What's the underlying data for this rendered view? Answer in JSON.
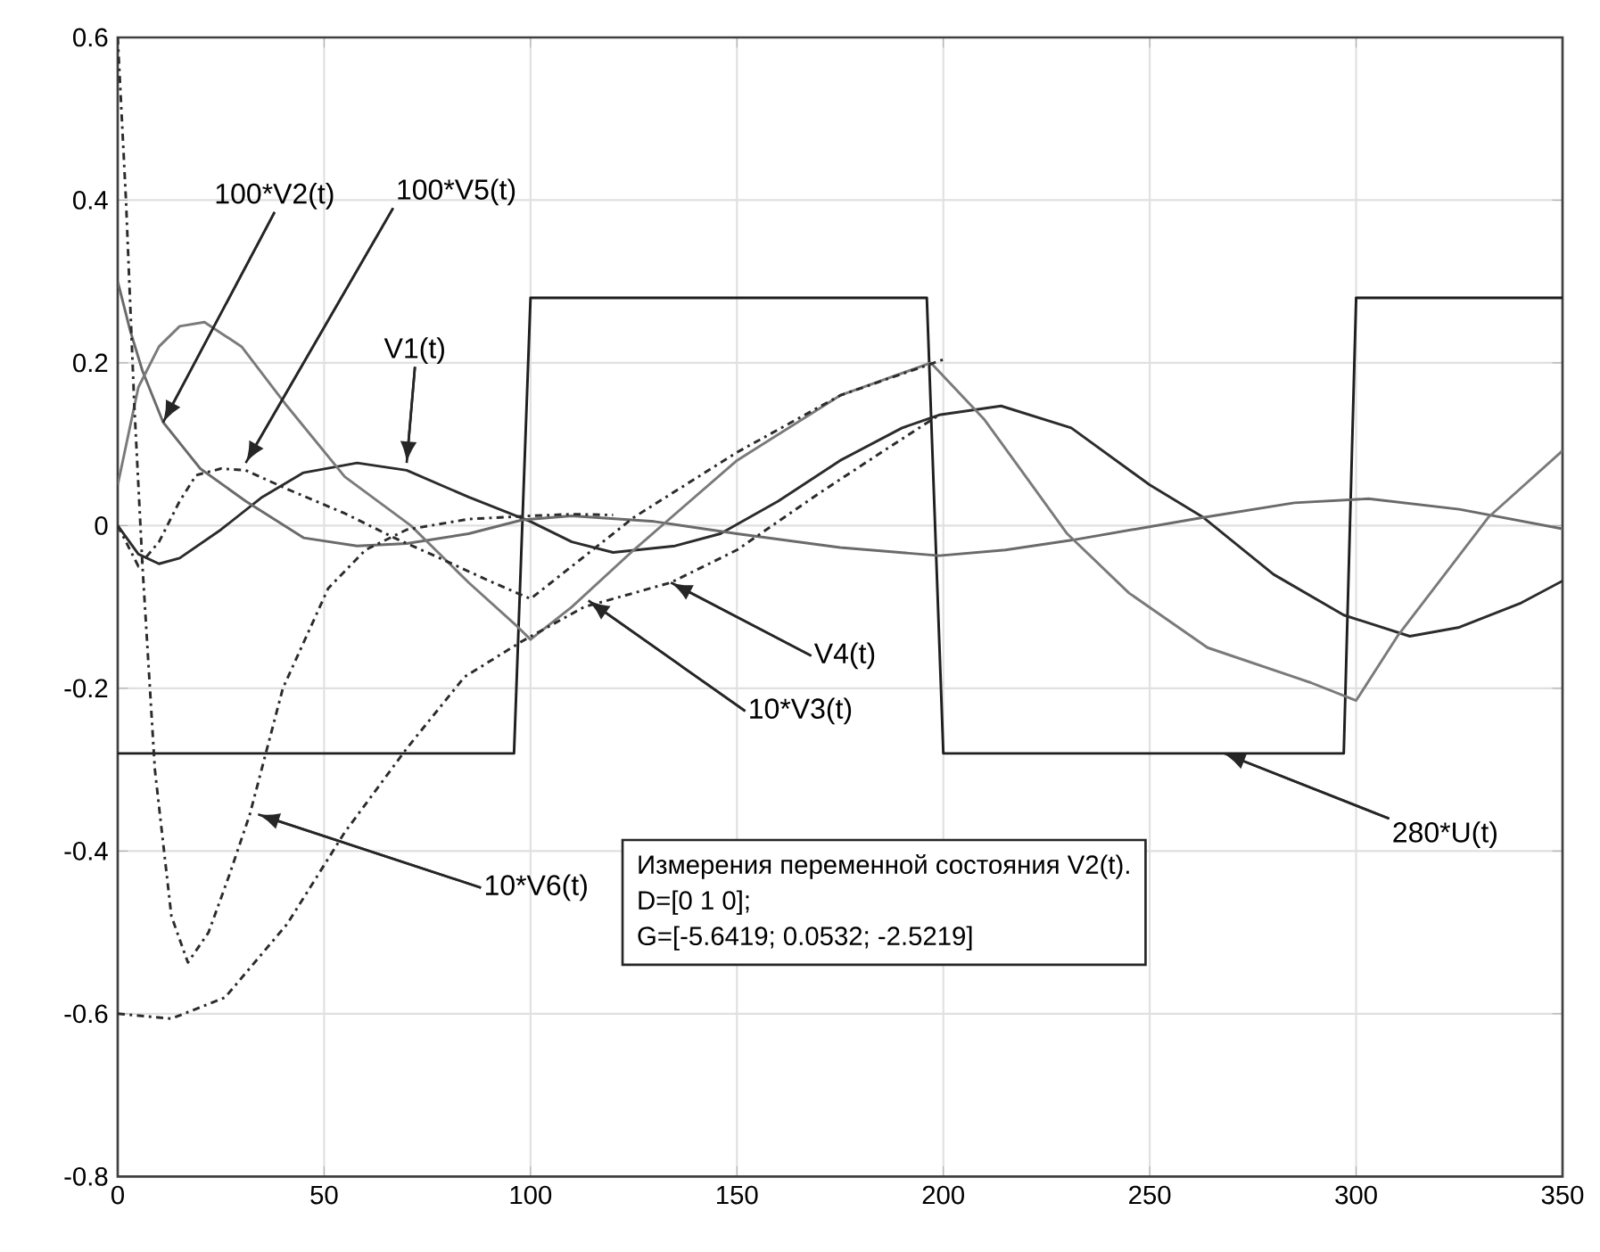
{
  "chart_data": {
    "type": "line",
    "xlim": [
      0,
      350
    ],
    "ylim": [
      -0.8,
      0.6
    ],
    "xticks": [
      0,
      50,
      100,
      150,
      200,
      250,
      300,
      350
    ],
    "yticks": [
      -0.8,
      -0.6,
      -0.4,
      -0.2,
      0,
      0.2,
      0.4,
      0.6
    ],
    "grid": true,
    "series": [
      {
        "color": "#1e1e1e",
        "line_style": "solid",
        "x": [
          0,
          96,
          100,
          196,
          200,
          297,
          300,
          350
        ],
        "values": [
          -0.28,
          -0.28,
          0.28,
          0.28,
          -0.28,
          -0.28,
          0.28,
          0.28
        ]
      },
      {
        "color": "#2b2b2b",
        "line_style": "solid",
        "x": [
          0,
          5,
          10,
          15,
          25,
          35,
          45,
          58,
          70,
          85,
          100,
          110,
          120,
          135,
          146,
          160,
          175,
          190,
          199,
          214,
          231,
          250,
          263,
          280,
          297,
          313,
          325,
          340,
          350
        ],
        "values": [
          0,
          -0.035,
          -0.047,
          -0.04,
          -0.005,
          0.035,
          0.065,
          0.077,
          0.068,
          0.035,
          0.005,
          -0.02,
          -0.033,
          -0.025,
          -0.01,
          0.03,
          0.08,
          0.12,
          0.136,
          0.147,
          0.12,
          0.05,
          0.01,
          -0.06,
          -0.11,
          -0.136,
          -0.125,
          -0.095,
          -0.068
        ]
      },
      {
        "color": "#6a6a6a",
        "line_style": "solid",
        "x": [
          0,
          3,
          6,
          11,
          20,
          31,
          45,
          58,
          70,
          85,
          98,
          110,
          130,
          150,
          175,
          199,
          215,
          231,
          263,
          285,
          303,
          325,
          350
        ],
        "values": [
          0.3,
          0.24,
          0.19,
          0.127,
          0.07,
          0.03,
          -0.015,
          -0.025,
          -0.022,
          -0.01,
          0.007,
          0.012,
          0.005,
          -0.01,
          -0.027,
          -0.037,
          -0.03,
          -0.018,
          0.01,
          0.028,
          0.033,
          0.02,
          -0.004
        ]
      },
      {
        "color": "#7a7a7a",
        "line_style": "solid",
        "x": [
          0,
          5,
          10,
          15,
          21,
          30,
          41,
          55,
          71,
          85,
          97,
          100,
          110,
          125,
          150,
          175,
          197,
          210,
          220,
          230,
          245,
          264,
          289,
          300,
          310,
          332,
          350
        ],
        "values": [
          0.05,
          0.17,
          0.22,
          0.245,
          0.25,
          0.22,
          0.147,
          0.06,
          0,
          -0.07,
          -0.125,
          -0.14,
          -0.1,
          -0.03,
          0.08,
          0.16,
          0.2,
          0.13,
          0.06,
          -0.01,
          -0.083,
          -0.15,
          -0.193,
          -0.215,
          -0.136,
          0.01,
          0.092
        ]
      },
      {
        "color": "#2b2b2b",
        "line_style": "dashdot",
        "x": [
          0,
          5,
          10,
          15,
          19,
          25,
          31,
          41,
          55,
          67,
          78,
          90,
          100,
          110,
          125,
          150,
          175,
          200
        ],
        "values": [
          0,
          -0.05,
          -0.02,
          0.03,
          0.062,
          0.07,
          0.068,
          0.045,
          0.015,
          -0.015,
          -0.04,
          -0.068,
          -0.09,
          -0.05,
          0.01,
          0.09,
          0.16,
          0.204
        ]
      },
      {
        "color": "#2b2b2b",
        "line_style": "dashdot",
        "x": [
          0,
          13,
          26,
          41,
          55,
          70,
          84,
          98,
          113,
          134,
          150,
          170,
          185,
          199
        ],
        "values": [
          -0.6,
          -0.606,
          -0.58,
          -0.49,
          -0.377,
          -0.274,
          -0.186,
          -0.142,
          -0.1,
          -0.07,
          -0.03,
          0.04,
          0.09,
          0.136
        ]
      },
      {
        "color": "#2b2b2b",
        "line_style": "dashdot",
        "x": [
          0,
          2,
          4,
          6,
          9,
          13,
          17,
          22,
          27,
          32,
          40,
          51,
          60,
          70,
          85,
          100,
          110,
          120
        ],
        "values": [
          0.6,
          0.4,
          0.15,
          -0.05,
          -0.3,
          -0.48,
          -0.537,
          -0.5,
          -0.43,
          -0.355,
          -0.2,
          -0.077,
          -0.03,
          -0.005,
          0.008,
          0.012,
          0.014,
          0.013
        ]
      }
    ],
    "annotations": [
      {
        "text": "100*V2(t)",
        "x": 11,
        "y": 0.127
      },
      {
        "text": "100*V5(t)",
        "x": 31,
        "y": 0.077
      },
      {
        "text": "V1(t)",
        "x": 70,
        "y": 0.077
      },
      {
        "text": "V4(t)",
        "x": 134,
        "y": -0.07
      },
      {
        "text": "10*V3(t)",
        "x": 114,
        "y": -0.092
      },
      {
        "text": "10*V6(t)",
        "x": 34,
        "y": -0.355
      },
      {
        "text": "280*U(t)",
        "x": 268,
        "y": -0.28
      },
      "Измерения переменной состояния V2(t).",
      "D=[0 1 0];",
      "G=[-5.6419; 0.0532; -2.5219]"
    ]
  }
}
